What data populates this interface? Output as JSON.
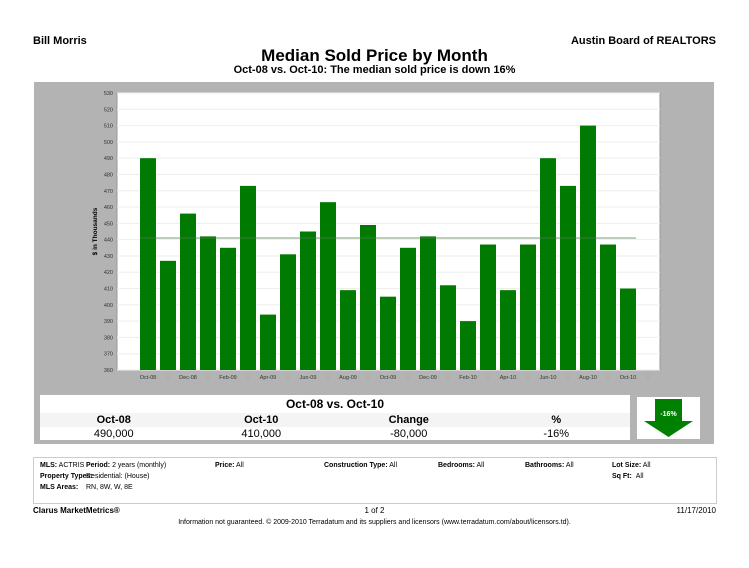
{
  "header": {
    "agent": "Bill Morris",
    "board": "Austin Board of REALTORS",
    "title": "Median Sold Price by Month",
    "subtitle": "Oct-08 vs. Oct-10:  The median sold price is down 16%"
  },
  "chart_data": {
    "type": "bar",
    "ylabel": "$ in Thousands",
    "ylim": [
      360,
      530
    ],
    "ytick_step": 10,
    "grid": true,
    "categories": [
      "Oct-08",
      "Nov-08",
      "Dec-08",
      "Jan-09",
      "Feb-09",
      "Mar-09",
      "Apr-09",
      "May-09",
      "Jun-09",
      "Jul-09",
      "Aug-09",
      "Sep-09",
      "Oct-09",
      "Nov-09",
      "Dec-09",
      "Jan-10",
      "Feb-10",
      "Mar-10",
      "Apr-10",
      "May-10",
      "Jun-10",
      "Jul-10",
      "Aug-10",
      "Sep-10",
      "Oct-10"
    ],
    "xtick_labels": [
      "Oct-08",
      "Dec-08",
      "Feb-09",
      "Apr-09",
      "Jun-09",
      "Aug-09",
      "Oct-09",
      "Dec-09",
      "Feb-10",
      "Apr-10",
      "Jun-10",
      "Aug-10",
      "Oct-10"
    ],
    "values": [
      490,
      427,
      456,
      442,
      435,
      473,
      394,
      431,
      445,
      463,
      409,
      449,
      405,
      435,
      442,
      412,
      390,
      437,
      409,
      437,
      490,
      473,
      510,
      437,
      410
    ],
    "average_line": 441,
    "bar_color": "#007a00"
  },
  "stats": {
    "heading": "Oct-08 vs. Oct-10",
    "columns": [
      "Oct-08",
      "Oct-10",
      "Change",
      "%"
    ],
    "values": [
      "490,000",
      "410,000",
      "-80,000",
      "-16%"
    ],
    "arrow_label": "-16%",
    "arrow_color": "#008000"
  },
  "info": {
    "mls_label": "MLS:",
    "mls": "ACTRIS",
    "period_label": "Period:",
    "period": "2 years (monthly)",
    "price_label": "Price:",
    "price": "All",
    "construction_label": "Construction Type:",
    "construction": "All",
    "bedrooms_label": "Bedrooms:",
    "bedrooms": "All",
    "bathrooms_label": "Bathrooms:",
    "bathrooms": "All",
    "lot_label": "Lot Size:",
    "lot": "All",
    "sqft_label": "Sq Ft:",
    "sqft": "All",
    "ptype_label": "Property Types:",
    "ptype": "Residential: (House)",
    "areas_label": "MLS Areas:",
    "areas": "RN, 8W, W, 8E"
  },
  "footer": {
    "brand": "Clarus MarketMetrics®",
    "page": "1 of 2",
    "date": "11/17/2010",
    "disclaimer": "Information not guaranteed.  © 2009-2010 Terradatum and its suppliers and licensors (www.terradatum.com/about/licensors.td)."
  }
}
